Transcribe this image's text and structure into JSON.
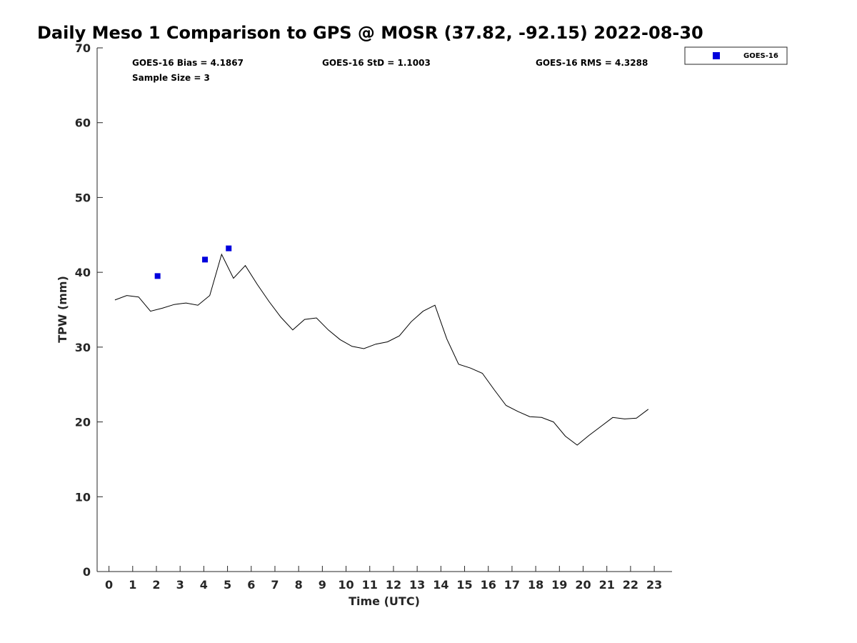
{
  "colors": {
    "gps_line": "#000000",
    "goes_marker": "#0000dd",
    "axis": "#262626"
  },
  "chart_data": {
    "type": "line",
    "title": "Daily Meso 1 Comparison to GPS @ MOSR (37.82, -92.15) 2022-08-30",
    "xlabel": "Time (UTC)",
    "ylabel": "TPW (mm)",
    "xlim": [
      -0.5,
      23.75
    ],
    "ylim": [
      0,
      70
    ],
    "xticks": [
      "0",
      "1",
      "2",
      "3",
      "4",
      "5",
      "6",
      "7",
      "8",
      "9",
      "10",
      "11",
      "12",
      "13",
      "14",
      "15",
      "16",
      "17",
      "18",
      "19",
      "20",
      "21",
      "22",
      "23"
    ],
    "yticks": [
      "0",
      "10",
      "20",
      "30",
      "40",
      "50",
      "60",
      "70"
    ],
    "grid": false,
    "legend_position": "top-right-outside",
    "stats": {
      "bias": "GOES-16 Bias = 4.1867",
      "std": "GOES-16 StD = 1.1003",
      "rms": "GOES-16 RMS = 4.3288",
      "sample": "Sample Size = 3"
    },
    "series": [
      {
        "kind": "line",
        "x": [
          0.25,
          0.75,
          1.25,
          1.75,
          2.25,
          2.75,
          3.25,
          3.75,
          4.25,
          4.75,
          5.25,
          5.75,
          6.25,
          6.75,
          7.25,
          7.75,
          8.25,
          8.75,
          9.25,
          9.75,
          10.25,
          10.75,
          11.25,
          11.75,
          12.25,
          12.75,
          13.25,
          13.75,
          14.25,
          14.75,
          15.25,
          15.75,
          16.25,
          16.75,
          17.25,
          17.75,
          18.25,
          18.75,
          19.25,
          19.75,
          20.25,
          20.75,
          21.25,
          21.75,
          22.25,
          22.75
        ],
        "y": [
          36.3,
          36.9,
          36.7,
          34.8,
          35.2,
          35.7,
          35.9,
          35.6,
          36.9,
          42.4,
          39.2,
          40.9,
          38.4,
          36.1,
          34.0,
          32.3,
          33.7,
          33.9,
          32.3,
          31.0,
          30.1,
          29.8,
          30.4,
          30.7,
          31.5,
          33.4,
          34.8,
          35.6,
          31.1,
          27.7,
          27.2,
          26.5,
          24.3,
          22.2,
          21.4,
          20.7,
          20.6,
          20.0,
          18.1,
          16.9,
          18.2,
          19.4,
          20.6,
          20.4,
          20.5,
          21.7
        ]
      },
      {
        "name": "GOES-16",
        "kind": "scatter",
        "x": [
          2.05,
          4.05,
          5.05
        ],
        "y": [
          39.5,
          41.7,
          43.2
        ]
      }
    ]
  }
}
